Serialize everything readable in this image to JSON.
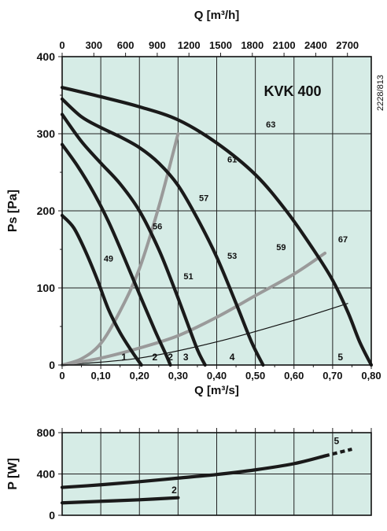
{
  "chart_data": [
    {
      "type": "line",
      "title": "KVK 400",
      "side_code": "2228/813",
      "xlabel": "Q [m³/s]",
      "x2label": "Q [m³/h]",
      "ylabel": "Ps [Pa]",
      "xlim": [
        0,
        0.8
      ],
      "ylim": [
        0,
        400
      ],
      "xticks": [
        "0",
        "0,10",
        "0,20",
        "0,30",
        "0,40",
        "0,50",
        "0,60",
        "0,70",
        "0,80"
      ],
      "x2ticks": [
        "0",
        "300",
        "600",
        "900",
        "1200",
        "1500",
        "1800",
        "2100",
        "2400",
        "2700"
      ],
      "yticks": [
        "0",
        "100",
        "200",
        "300",
        "400"
      ],
      "grid": true,
      "fan_curves": [
        {
          "name": "1",
          "points": [
            [
              0.0,
              194
            ],
            [
              0.03,
              178
            ],
            [
              0.06,
              148
            ],
            [
              0.09,
              112
            ],
            [
              0.12,
              72
            ],
            [
              0.15,
              42
            ],
            [
              0.18,
              18
            ],
            [
              0.205,
              0
            ]
          ]
        },
        {
          "name": "2",
          "points": [
            [
              0.0,
              286
            ],
            [
              0.04,
              258
            ],
            [
              0.08,
              225
            ],
            [
              0.12,
              186
            ],
            [
              0.16,
              140
            ],
            [
              0.2,
              92
            ],
            [
              0.24,
              45
            ],
            [
              0.27,
              12
            ],
            [
              0.28,
              0
            ]
          ]
        },
        {
          "name": "3",
          "points": [
            [
              0.0,
              325
            ],
            [
              0.05,
              290
            ],
            [
              0.1,
              262
            ],
            [
              0.15,
              235
            ],
            [
              0.2,
              200
            ],
            [
              0.25,
              150
            ],
            [
              0.29,
              100
            ],
            [
              0.32,
              60
            ],
            [
              0.35,
              20
            ],
            [
              0.37,
              0
            ]
          ]
        },
        {
          "name": "4",
          "points": [
            [
              0.0,
              345
            ],
            [
              0.05,
              322
            ],
            [
              0.1,
              308
            ],
            [
              0.15,
              296
            ],
            [
              0.2,
              282
            ],
            [
              0.25,
              262
            ],
            [
              0.3,
              233
            ],
            [
              0.35,
              190
            ],
            [
              0.4,
              140
            ],
            [
              0.45,
              80
            ],
            [
              0.49,
              30
            ],
            [
              0.52,
              0
            ]
          ]
        },
        {
          "name": "5",
          "points": [
            [
              0.0,
              360
            ],
            [
              0.1,
              348
            ],
            [
              0.2,
              335
            ],
            [
              0.3,
              318
            ],
            [
              0.4,
              288
            ],
            [
              0.5,
              247
            ],
            [
              0.58,
              200
            ],
            [
              0.65,
              150
            ],
            [
              0.7,
              110
            ],
            [
              0.74,
              68
            ],
            [
              0.77,
              30
            ],
            [
              0.8,
              0
            ]
          ]
        }
      ],
      "efficiency_curves": [
        {
          "points": [
            [
              0.0,
              0
            ],
            [
              0.05,
              8
            ],
            [
              0.1,
              28
            ],
            [
              0.15,
              70
            ],
            [
              0.2,
              125
            ],
            [
              0.25,
              205
            ],
            [
              0.3,
              300
            ]
          ]
        },
        {
          "points": [
            [
              0.0,
              0
            ],
            [
              0.1,
              9
            ],
            [
              0.2,
              22
            ],
            [
              0.3,
              38
            ],
            [
              0.4,
              62
            ],
            [
              0.5,
              90
            ],
            [
              0.6,
              118
            ],
            [
              0.68,
              145
            ]
          ]
        }
      ],
      "system_curve": {
        "points": [
          [
            0.0,
            0
          ],
          [
            0.2,
            9
          ],
          [
            0.4,
            30
          ],
          [
            0.6,
            58
          ],
          [
            0.74,
            80
          ]
        ]
      },
      "efficiency_labels": [
        {
          "text": "49",
          "x": 0.18,
          "y": 134
        },
        {
          "text": "56",
          "x": 0.37,
          "y": 176
        },
        {
          "text": "57",
          "x": 0.55,
          "y": 213
        },
        {
          "text": "61",
          "x": 0.66,
          "y": 263
        },
        {
          "text": "63",
          "x": 0.81,
          "y": 308
        },
        {
          "text": "51",
          "x": 0.49,
          "y": 111
        },
        {
          "text": "53",
          "x": 0.66,
          "y": 138
        },
        {
          "text": "59",
          "x": 0.85,
          "y": 149
        },
        {
          "text": "67",
          "x": 1.09,
          "y": 159
        }
      ],
      "curve_labels": [
        {
          "text": "1",
          "x": 0.2,
          "y": 10
        },
        {
          "text": "2",
          "x": 0.3,
          "y": 10
        },
        {
          "text": "2",
          "x": 0.35,
          "y": 10
        },
        {
          "text": "3",
          "x": 0.4,
          "y": 10
        },
        {
          "text": "4",
          "x": 0.55,
          "y": 10
        },
        {
          "text": "5",
          "x": 0.9,
          "y": 10
        }
      ]
    },
    {
      "type": "line",
      "ylabel": "P [W]",
      "xlim": [
        0,
        0.8
      ],
      "ylim": [
        0,
        800
      ],
      "yticks": [
        "0",
        "400",
        "800"
      ],
      "grid": true,
      "series": [
        {
          "name": "5",
          "points": [
            [
              0.0,
              270
            ],
            [
              0.1,
              295
            ],
            [
              0.2,
              325
            ],
            [
              0.3,
              360
            ],
            [
              0.4,
              395
            ],
            [
              0.5,
              440
            ],
            [
              0.6,
              500
            ],
            [
              0.68,
              575
            ],
            [
              0.75,
              640
            ]
          ]
        },
        {
          "name": "2",
          "points": [
            [
              0.0,
              120
            ],
            [
              0.1,
              135
            ],
            [
              0.2,
              150
            ],
            [
              0.3,
              170
            ]
          ]
        }
      ]
    }
  ]
}
